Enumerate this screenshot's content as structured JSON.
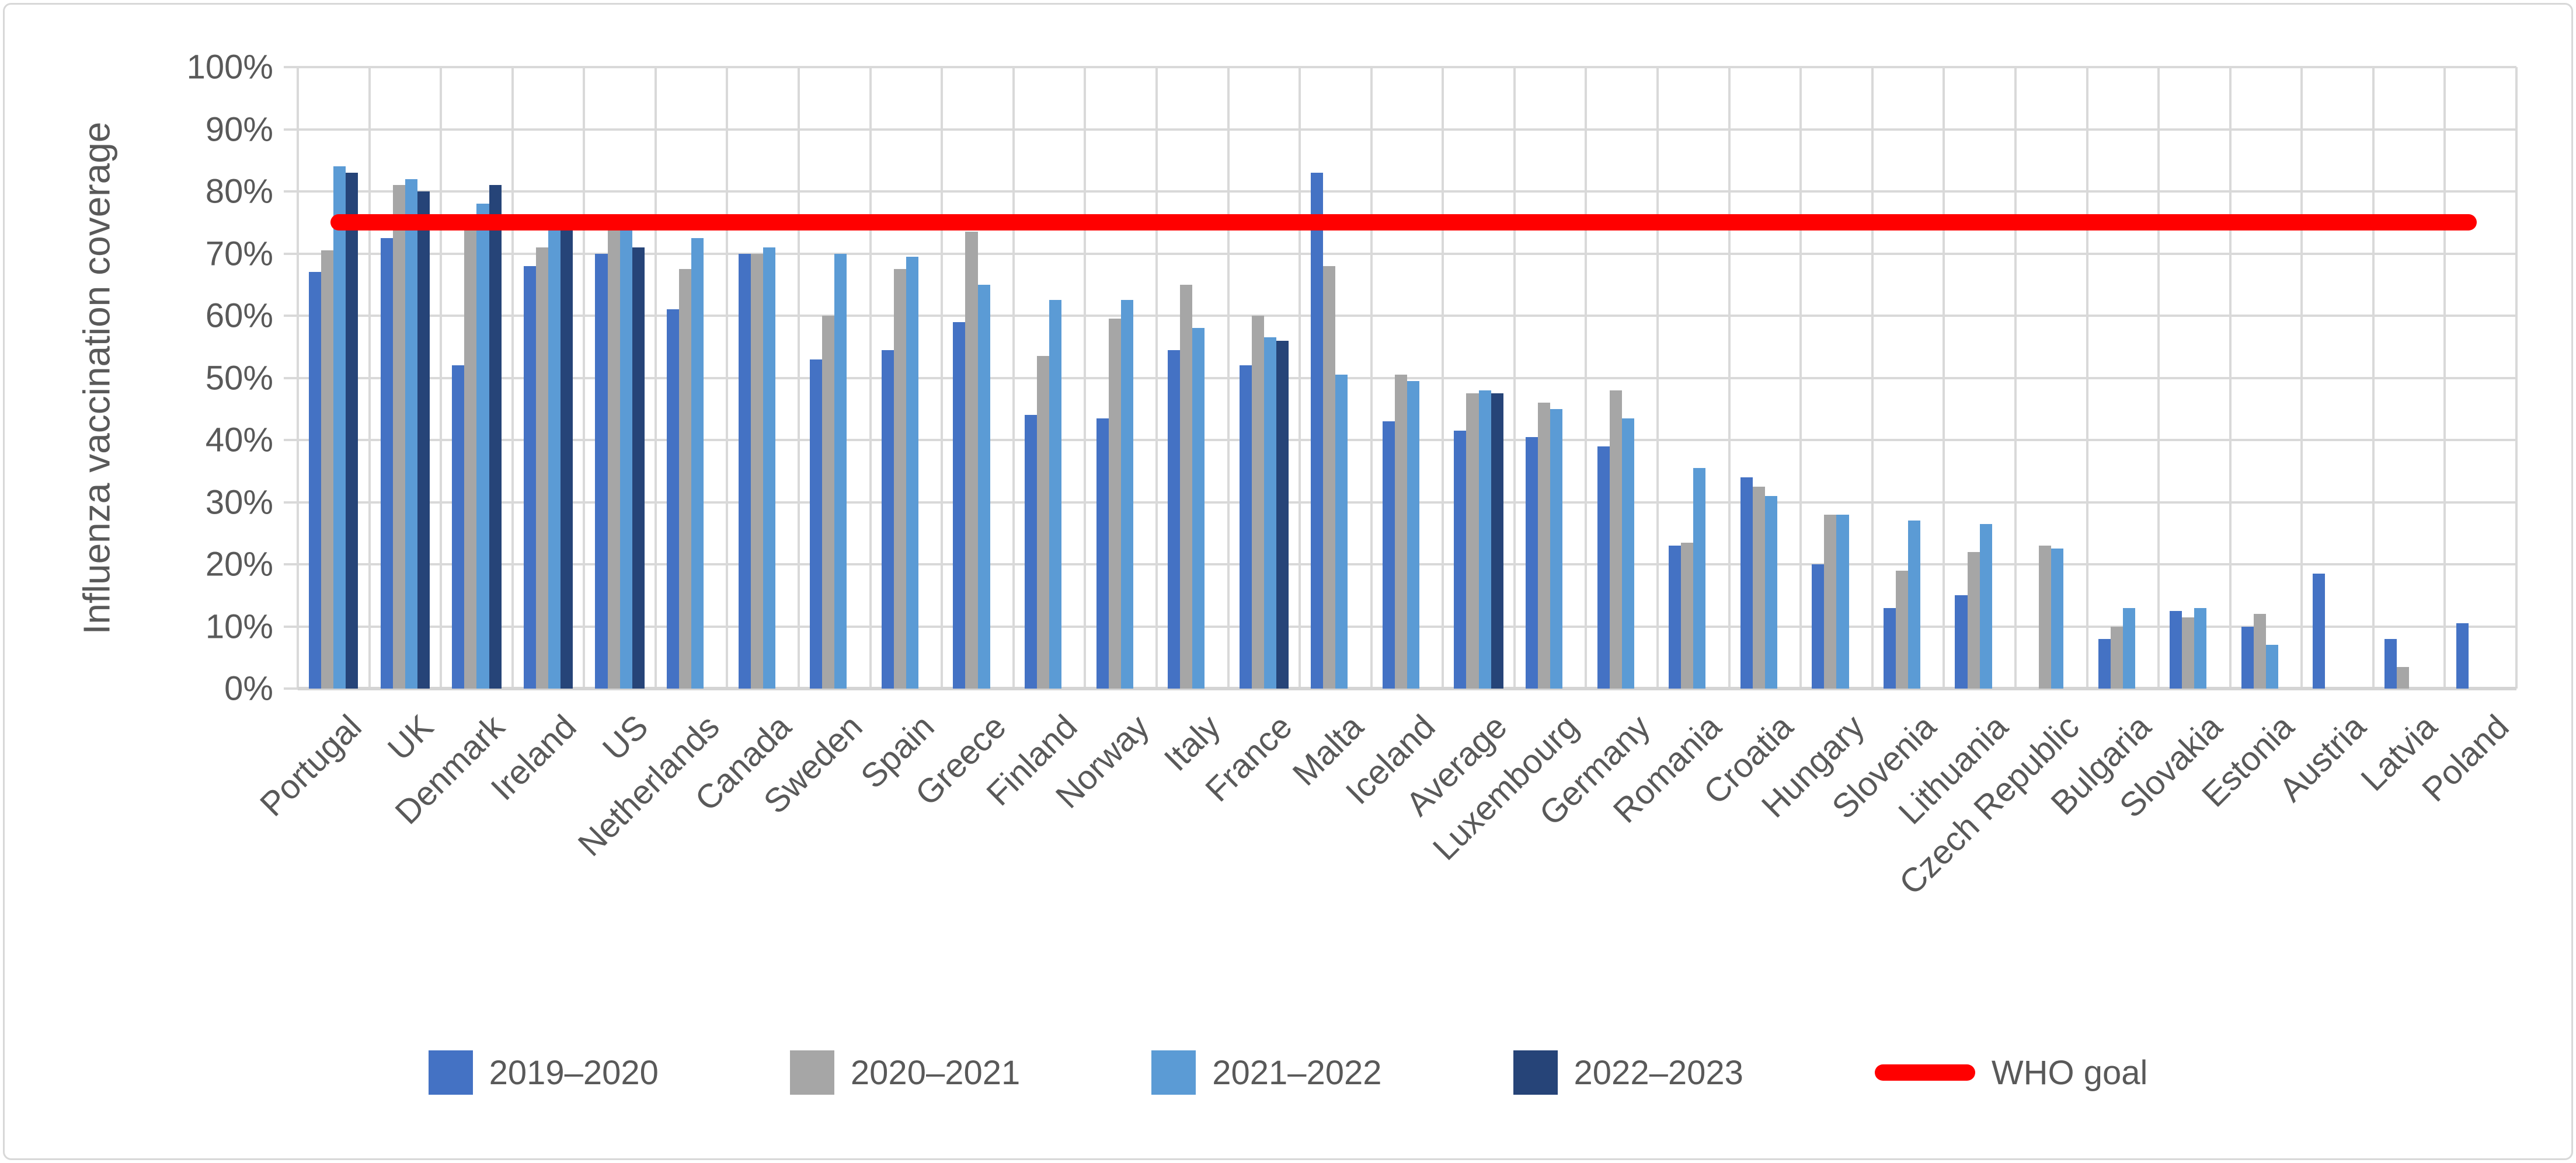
{
  "figure": {
    "background": "#FFFFFF",
    "border_color": "#D8D8D8",
    "grid_color": "#D9D9D9",
    "text_color": "#595959"
  },
  "chart_data": {
    "type": "bar",
    "title": "",
    "xlabel": "",
    "ylabel": "Influenza vaccination coverage",
    "ylim": [
      0,
      100
    ],
    "ytick_step": 10,
    "ytick_labels": [
      "0%",
      "10%",
      "20%",
      "30%",
      "40%",
      "50%",
      "60%",
      "70%",
      "80%",
      "90%",
      "100%"
    ],
    "grid": true,
    "vertical_gridlines": true,
    "legend_position": "bottom",
    "categories": [
      "Portugal",
      "UK",
      "Denmark",
      "Ireland",
      "US",
      "Netherlands",
      "Canada",
      "Sweden",
      "Spain",
      "Greece",
      "Finland",
      "Norway",
      "Italy",
      "France",
      "Malta",
      "Iceland",
      "Average",
      "Luxembourg",
      "Germany",
      "Romania",
      "Croatia",
      "Hungary",
      "Slovenia",
      "Lithuania",
      "Czech Republic",
      "Bulgaria",
      "Slovakia",
      "Estonia",
      "Austria",
      "Latvia",
      "Poland"
    ],
    "series": [
      {
        "name": "2019–2020",
        "color": "#4472C4",
        "values": [
          67,
          72.5,
          52,
          68,
          70,
          61,
          70,
          53,
          54.5,
          59,
          44,
          43.5,
          54.5,
          52,
          83,
          43,
          41.5,
          40.5,
          39,
          23,
          34,
          20,
          13,
          15,
          null,
          8,
          12.5,
          10,
          18.5,
          8,
          10.5
        ]
      },
      {
        "name": "2020–2021",
        "color": "#A6A6A6",
        "values": [
          70.5,
          81,
          74,
          71,
          74,
          67.5,
          70,
          60,
          67.5,
          73.5,
          53.5,
          59.5,
          65,
          60,
          68,
          50.5,
          47.5,
          46,
          48,
          23.5,
          32.5,
          28,
          19,
          22,
          23,
          10,
          11.5,
          12,
          null,
          3.5,
          null
        ]
      },
      {
        "name": "2021–2022",
        "color": "#5B9BD5",
        "values": [
          84,
          82,
          78,
          74,
          74,
          72.5,
          71,
          70,
          69.5,
          65,
          62.5,
          62.5,
          58,
          56.5,
          50.5,
          49.5,
          48,
          45,
          43.5,
          35.5,
          31,
          28,
          27,
          26.5,
          22.5,
          13,
          13,
          7,
          null,
          null,
          null
        ]
      },
      {
        "name": "2022–2023",
        "color": "#264478",
        "values": [
          83,
          80,
          81,
          74,
          71,
          null,
          null,
          null,
          null,
          null,
          null,
          null,
          null,
          56,
          null,
          null,
          47.5,
          null,
          null,
          null,
          null,
          null,
          null,
          null,
          null,
          null,
          null,
          null,
          null,
          null,
          null
        ]
      }
    ],
    "goal_line": {
      "label": "WHO goal",
      "value": 75,
      "color": "#FF0000"
    }
  }
}
